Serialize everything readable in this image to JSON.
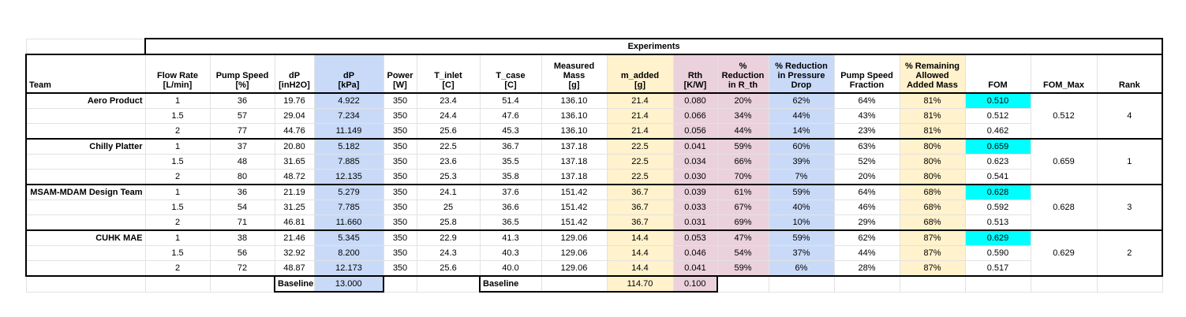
{
  "header": {
    "group": "Experiments",
    "columns": [
      "Team",
      "Flow Rate\n[L/min]",
      "Pump Speed\n[%]",
      "dP\n[inH2O]",
      "dP\n[kPa]",
      "Power\n[W]",
      "T_inlet\n[C]",
      "T_case\n[C]",
      "Measured Mass\n[g]",
      "m_added\n[g]",
      "Rth\n[K/W]",
      "%\nReduction\nin R_th",
      "% Reduction\nin Pressure\nDrop",
      "Pump Speed\nFraction",
      "% Remaining\nAllowed\nAdded Mass",
      "FOM",
      "FOM_Max",
      "Rank"
    ]
  },
  "teams": [
    {
      "name": "Aero Product",
      "rows": [
        [
          "1",
          "36",
          "19.76",
          "4.922",
          "350",
          "23.4",
          "51.4",
          "136.10",
          "21.4",
          "0.080",
          "20%",
          "62%",
          "64%",
          "81%",
          "0.510"
        ],
        [
          "1.5",
          "57",
          "29.04",
          "7.234",
          "350",
          "24.4",
          "47.6",
          "136.10",
          "21.4",
          "0.066",
          "34%",
          "44%",
          "43%",
          "81%",
          "0.512"
        ],
        [
          "2",
          "77",
          "44.76",
          "11.149",
          "350",
          "25.6",
          "45.3",
          "136.10",
          "21.4",
          "0.056",
          "44%",
          "14%",
          "23%",
          "81%",
          "0.462"
        ]
      ],
      "fom_max": "0.512",
      "rank": "4"
    },
    {
      "name": "Chilly Platter",
      "rows": [
        [
          "1",
          "37",
          "20.80",
          "5.182",
          "350",
          "22.5",
          "36.7",
          "137.18",
          "22.5",
          "0.041",
          "59%",
          "60%",
          "63%",
          "80%",
          "0.659"
        ],
        [
          "1.5",
          "48",
          "31.65",
          "7.885",
          "350",
          "23.6",
          "35.5",
          "137.18",
          "22.5",
          "0.034",
          "66%",
          "39%",
          "52%",
          "80%",
          "0.623"
        ],
        [
          "2",
          "80",
          "48.72",
          "12.135",
          "350",
          "25.3",
          "35.8",
          "137.18",
          "22.5",
          "0.030",
          "70%",
          "7%",
          "20%",
          "80%",
          "0.541"
        ]
      ],
      "fom_max": "0.659",
      "rank": "1"
    },
    {
      "name": "MSAM-MDAM Design Team",
      "rows": [
        [
          "1",
          "36",
          "21.19",
          "5.279",
          "350",
          "24.1",
          "37.6",
          "151.42",
          "36.7",
          "0.039",
          "61%",
          "59%",
          "64%",
          "68%",
          "0.628"
        ],
        [
          "1.5",
          "54",
          "31.25",
          "7.785",
          "350",
          "25",
          "36.6",
          "151.42",
          "36.7",
          "0.033",
          "67%",
          "40%",
          "46%",
          "68%",
          "0.592"
        ],
        [
          "2",
          "71",
          "46.81",
          "11.660",
          "350",
          "25.8",
          "36.5",
          "151.42",
          "36.7",
          "0.031",
          "69%",
          "10%",
          "29%",
          "68%",
          "0.513"
        ]
      ],
      "fom_max": "0.628",
      "rank": "3"
    },
    {
      "name": "CUHK MAE",
      "rows": [
        [
          "1",
          "38",
          "21.46",
          "5.345",
          "350",
          "22.9",
          "41.3",
          "129.06",
          "14.4",
          "0.053",
          "47%",
          "59%",
          "62%",
          "87%",
          "0.629"
        ],
        [
          "1.5",
          "56",
          "32.92",
          "8.200",
          "350",
          "24.3",
          "40.3",
          "129.06",
          "14.4",
          "0.046",
          "54%",
          "37%",
          "44%",
          "87%",
          "0.590"
        ],
        [
          "2",
          "72",
          "48.87",
          "12.173",
          "350",
          "25.6",
          "40.0",
          "129.06",
          "14.4",
          "0.041",
          "59%",
          "6%",
          "28%",
          "87%",
          "0.517"
        ]
      ],
      "fom_max": "0.629",
      "rank": "2"
    }
  ],
  "baseline": {
    "pressure": {
      "label": "Baseline",
      "dp_kpa": "13.000"
    },
    "mass": {
      "label": "Baseline",
      "m_added": "114.70",
      "rth": "0.100"
    }
  }
}
